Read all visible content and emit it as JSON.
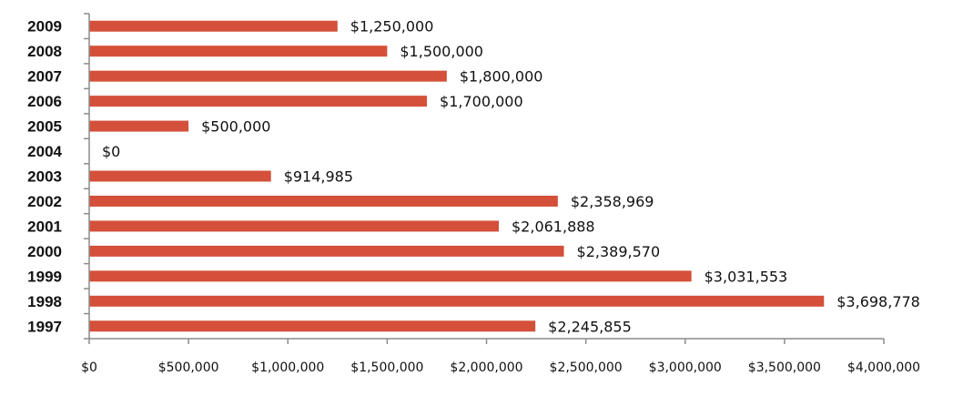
{
  "chart_data": {
    "type": "bar",
    "orientation": "horizontal",
    "categories": [
      "2009",
      "2008",
      "2007",
      "2006",
      "2005",
      "2004",
      "2003",
      "2002",
      "2001",
      "2000",
      "1999",
      "1998",
      "1997"
    ],
    "values": [
      1250000,
      1500000,
      1800000,
      1700000,
      500000,
      0,
      914985,
      2358969,
      2061888,
      2389570,
      3031553,
      3698778,
      2245855
    ],
    "data_labels": [
      "$1,250,000",
      "$1,500,000",
      "$1,800,000",
      "$1,700,000",
      "$500,000",
      "$0",
      "$914,985",
      "$2,358,969",
      "$2,061,888",
      "$2,389,570",
      "$3,031,553",
      "$3,698,778",
      "$2,245,855"
    ],
    "x_ticks": [
      0,
      500000,
      1000000,
      1500000,
      2000000,
      2500000,
      3000000,
      3500000,
      4000000
    ],
    "x_tick_labels": [
      "$0",
      "$500,000",
      "$1,000,000",
      "$1,500,000",
      "$2,000,000",
      "$2,500,000",
      "$3,000,000",
      "$3,500,000",
      "$4,000,000"
    ],
    "xlim": [
      0,
      4000000
    ],
    "title": "",
    "xlabel": "",
    "ylabel": "",
    "grid": false,
    "legend": "none",
    "colors": {
      "bar": "#d4503a",
      "axis": "#8c8c8c",
      "text": "#111111"
    }
  }
}
